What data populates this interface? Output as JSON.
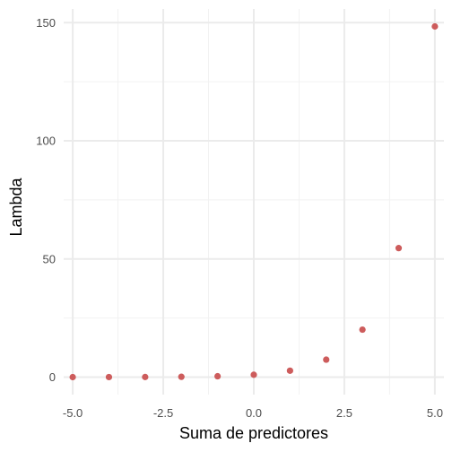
{
  "chart_data": {
    "type": "scatter",
    "title": "",
    "xlabel": "Suma de predictores",
    "ylabel": "Lambda",
    "xlim": [
      -5.25,
      5.25
    ],
    "ylim": [
      -7.4,
      155.8
    ],
    "x_ticks": [
      -5.0,
      -2.5,
      0.0,
      2.5,
      5.0
    ],
    "x_tick_labels": [
      "-5.0",
      "-2.5",
      "0.0",
      "2.5",
      "5.0"
    ],
    "x_minor_ticks": [
      -3.75,
      -1.25,
      1.25,
      3.75
    ],
    "y_ticks": [
      0,
      50,
      100,
      150
    ],
    "y_tick_labels": [
      "0",
      "50",
      "100",
      "150"
    ],
    "y_minor_ticks": [
      25,
      75,
      125
    ],
    "grid": true,
    "point_color": "#CD5C5C",
    "series": [
      {
        "x": [
          -5,
          -4,
          -3,
          -2,
          -1,
          0,
          1,
          2,
          3,
          4,
          5
        ],
        "y": [
          0.0067,
          0.0183,
          0.0498,
          0.1353,
          0.3679,
          1.0,
          2.718,
          7.389,
          20.09,
          54.6,
          148.4
        ]
      }
    ]
  }
}
